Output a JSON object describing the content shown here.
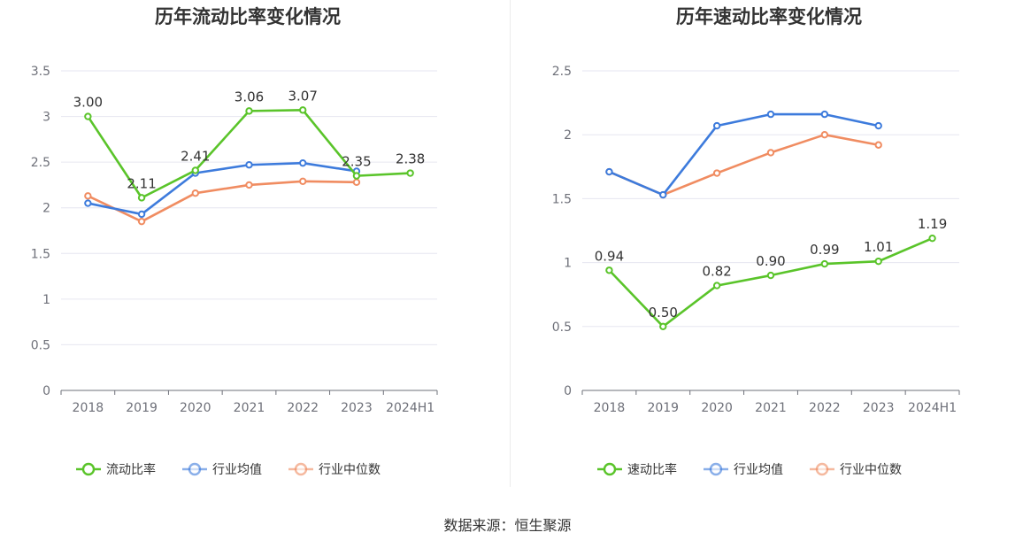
{
  "colors": {
    "green": "#5ac42a",
    "blue": "#3d7bdc",
    "orange": "#f08c61",
    "grid": "#e6e6f0",
    "axis": "#6e7079"
  },
  "source": "数据来源：恒生聚源",
  "chart_data": [
    {
      "type": "line",
      "title": "历年流动比率变化情况",
      "categories": [
        "2018",
        "2019",
        "2020",
        "2021",
        "2022",
        "2023",
        "2024H1"
      ],
      "ylim": [
        0,
        3.5
      ],
      "yticks": [
        "0",
        "0.5",
        "1",
        "1.5",
        "2",
        "2.5",
        "3",
        "3.5"
      ],
      "grid": true,
      "legend_position": "bottom",
      "series": [
        {
          "name": "流动比率",
          "color": "green",
          "labels": true,
          "values": [
            3.0,
            2.11,
            2.41,
            3.06,
            3.07,
            2.35,
            2.38
          ],
          "value_labels": [
            "3.00",
            "2.11",
            "2.41",
            "3.06",
            "3.07",
            "2.35",
            "2.38"
          ]
        },
        {
          "name": "行业均值",
          "color": "blue",
          "labels": false,
          "values": [
            2.05,
            1.93,
            2.38,
            2.47,
            2.49,
            2.4,
            null
          ]
        },
        {
          "name": "行业中位数",
          "color": "orange",
          "labels": false,
          "values": [
            2.13,
            1.85,
            2.16,
            2.25,
            2.29,
            2.28,
            null
          ]
        }
      ]
    },
    {
      "type": "line",
      "title": "历年速动比率变化情况",
      "categories": [
        "2018",
        "2019",
        "2020",
        "2021",
        "2022",
        "2023",
        "2024H1"
      ],
      "ylim": [
        0,
        2.5
      ],
      "yticks": [
        "0",
        "0.5",
        "1",
        "1.5",
        "2",
        "2.5"
      ],
      "grid": true,
      "legend_position": "bottom",
      "series": [
        {
          "name": "速动比率",
          "color": "green",
          "labels": true,
          "values": [
            0.94,
            0.5,
            0.82,
            0.9,
            0.99,
            1.01,
            1.19
          ],
          "value_labels": [
            "0.94",
            "0.50",
            "0.82",
            "0.90",
            "0.99",
            "1.01",
            "1.19"
          ]
        },
        {
          "name": "行业均值",
          "color": "blue",
          "labels": false,
          "values": [
            1.71,
            1.53,
            2.07,
            2.16,
            2.16,
            2.07,
            null
          ]
        },
        {
          "name": "行业中位数",
          "color": "orange",
          "labels": false,
          "values": [
            1.71,
            1.53,
            1.7,
            1.86,
            2.0,
            1.92,
            null
          ]
        }
      ]
    }
  ]
}
